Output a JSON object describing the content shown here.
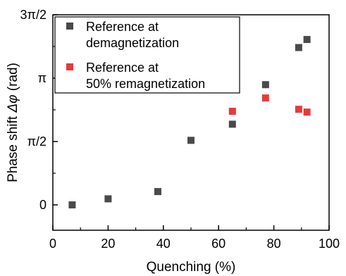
{
  "chart_data": {
    "type": "scatter",
    "xlabel": "Quenching (%)",
    "ylabel_prefix": "Phase shift ",
    "ylabel_symbol": "Δφ",
    "ylabel_suffix": " (rad)",
    "xlim": [
      0,
      100
    ],
    "ylim": [
      -0.6283,
      4.712
    ],
    "x_ticks": [
      {
        "value": 0,
        "label": "0"
      },
      {
        "value": 20,
        "label": "20"
      },
      {
        "value": 40,
        "label": "40"
      },
      {
        "value": 60,
        "label": "60"
      },
      {
        "value": 80,
        "label": "80"
      },
      {
        "value": 100,
        "label": "100"
      }
    ],
    "y_ticks": [
      {
        "value": 0,
        "label": "0"
      },
      {
        "value": 1.5708,
        "label": "π/2"
      },
      {
        "value": 3.1416,
        "label": "π"
      },
      {
        "value": 4.7124,
        "label": "3π/2"
      }
    ],
    "y_minor_ticks": [
      -0.7854,
      0.7854,
      2.3562,
      3.927
    ],
    "x_minor_ticks": [
      10,
      30,
      50,
      70,
      90
    ],
    "legend_position": "top-left",
    "grid": false,
    "series": [
      {
        "name": "Reference at demagnetization",
        "color": "#4a4a4a",
        "points": [
          {
            "x": 7,
            "y": 0.0
          },
          {
            "x": 20,
            "y": 0.15
          },
          {
            "x": 38,
            "y": 0.33
          },
          {
            "x": 50,
            "y": 1.6
          },
          {
            "x": 65,
            "y": 2.0
          },
          {
            "x": 77,
            "y": 2.98
          },
          {
            "x": 89,
            "y": 3.9
          },
          {
            "x": 92,
            "y": 4.1
          }
        ]
      },
      {
        "name": "Reference at 50% remagnetization",
        "color": "#e8393b",
        "points": [
          {
            "x": 65,
            "y": 2.32
          },
          {
            "x": 77,
            "y": 2.65
          },
          {
            "x": 89,
            "y": 2.37
          },
          {
            "x": 92,
            "y": 2.3
          }
        ]
      }
    ],
    "legend": {
      "entries": [
        {
          "line1": "Reference at",
          "line2": "demagnetization",
          "color": "#4a4a4a"
        },
        {
          "line1": "Reference at",
          "line2": "50% remagnetization",
          "color": "#e8393b"
        }
      ]
    }
  }
}
